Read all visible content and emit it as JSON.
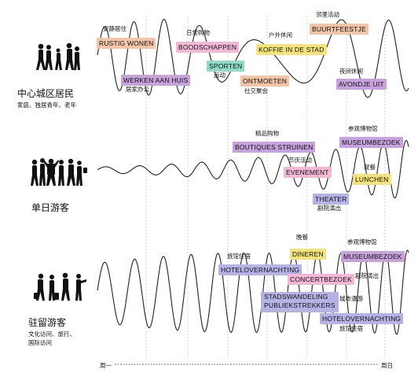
{
  "axis": {
    "start_label": "周一",
    "end_label": "周日"
  },
  "colors": {
    "orange": "#f2c4a8",
    "purple": "#c8a2dd",
    "pink": "#f2b8d6",
    "green": "#8fdcc6",
    "yellow": "#f4e27a",
    "lavender": "#b5b3e6"
  },
  "groups": [
    {
      "id": "residents",
      "title": "中心城区居民",
      "subtitle": "家庭、独居青年、老年",
      "tags": [
        {
          "label": "RUSTIG WONEN",
          "cn": "安静居住",
          "color": "orange"
        },
        {
          "label": "WERKEN AAN HUIS",
          "cn": "居家办公",
          "color": "purple"
        },
        {
          "label": "BOODSCHAPPEN",
          "cn": "日常购物",
          "color": "pink"
        },
        {
          "label": "SPORTEN",
          "cn": "运动",
          "color": "green"
        },
        {
          "label": "ONTMOETEN",
          "cn": "社交聚会",
          "color": "orange"
        },
        {
          "label": "KOFFIE IN DE STAD",
          "cn": "户外休闲",
          "color": "yellow"
        },
        {
          "label": "BUURTFEESTJE",
          "cn": "邻里活动",
          "color": "orange"
        },
        {
          "label": "AVONDJE UIT",
          "cn": "夜间休闲",
          "color": "purple"
        }
      ]
    },
    {
      "id": "daytrippers",
      "title": "单日游客",
      "subtitle": "",
      "tags": [
        {
          "label": "BOUTIQUES STRUINEN",
          "cn": "精品购物",
          "color": "purple"
        },
        {
          "label": "EVENEMENT",
          "cn": "节庆活动",
          "color": "pink"
        },
        {
          "label": "THEATER",
          "cn": "剧院演出",
          "color": "lavender"
        },
        {
          "label": "MUSEUMBEZOEK",
          "cn": "参观博物馆",
          "color": "purple"
        },
        {
          "label": "LUNCHEN",
          "cn": "就餐",
          "color": "yellow"
        }
      ]
    },
    {
      "id": "overnight",
      "title": "驻留游客",
      "subtitle": "文化访问、旅行、\n国际访问",
      "tags": [
        {
          "label": "HOTELOVERNACHTING",
          "cn": "旅馆住宿",
          "color": "lavender"
        },
        {
          "label": "DINEREN",
          "cn": "晚餐",
          "color": "yellow"
        },
        {
          "label": "CONCERTBEZOEK",
          "cn": "",
          "color": "pink"
        },
        {
          "label": "MUSEUMBEZOEK",
          "cn": "参观博物馆",
          "color": "purple"
        },
        {
          "label": "",
          "cn": "剧院演出",
          "color": "purple"
        },
        {
          "label": "STADSWANDELING\nPUBLIEKSTREKKERS",
          "cn": "城市漫游",
          "color": "lavender"
        },
        {
          "label": "HOTELOVERNACHTING",
          "cn": "旅馆住宿",
          "color": "lavender"
        }
      ]
    }
  ]
}
